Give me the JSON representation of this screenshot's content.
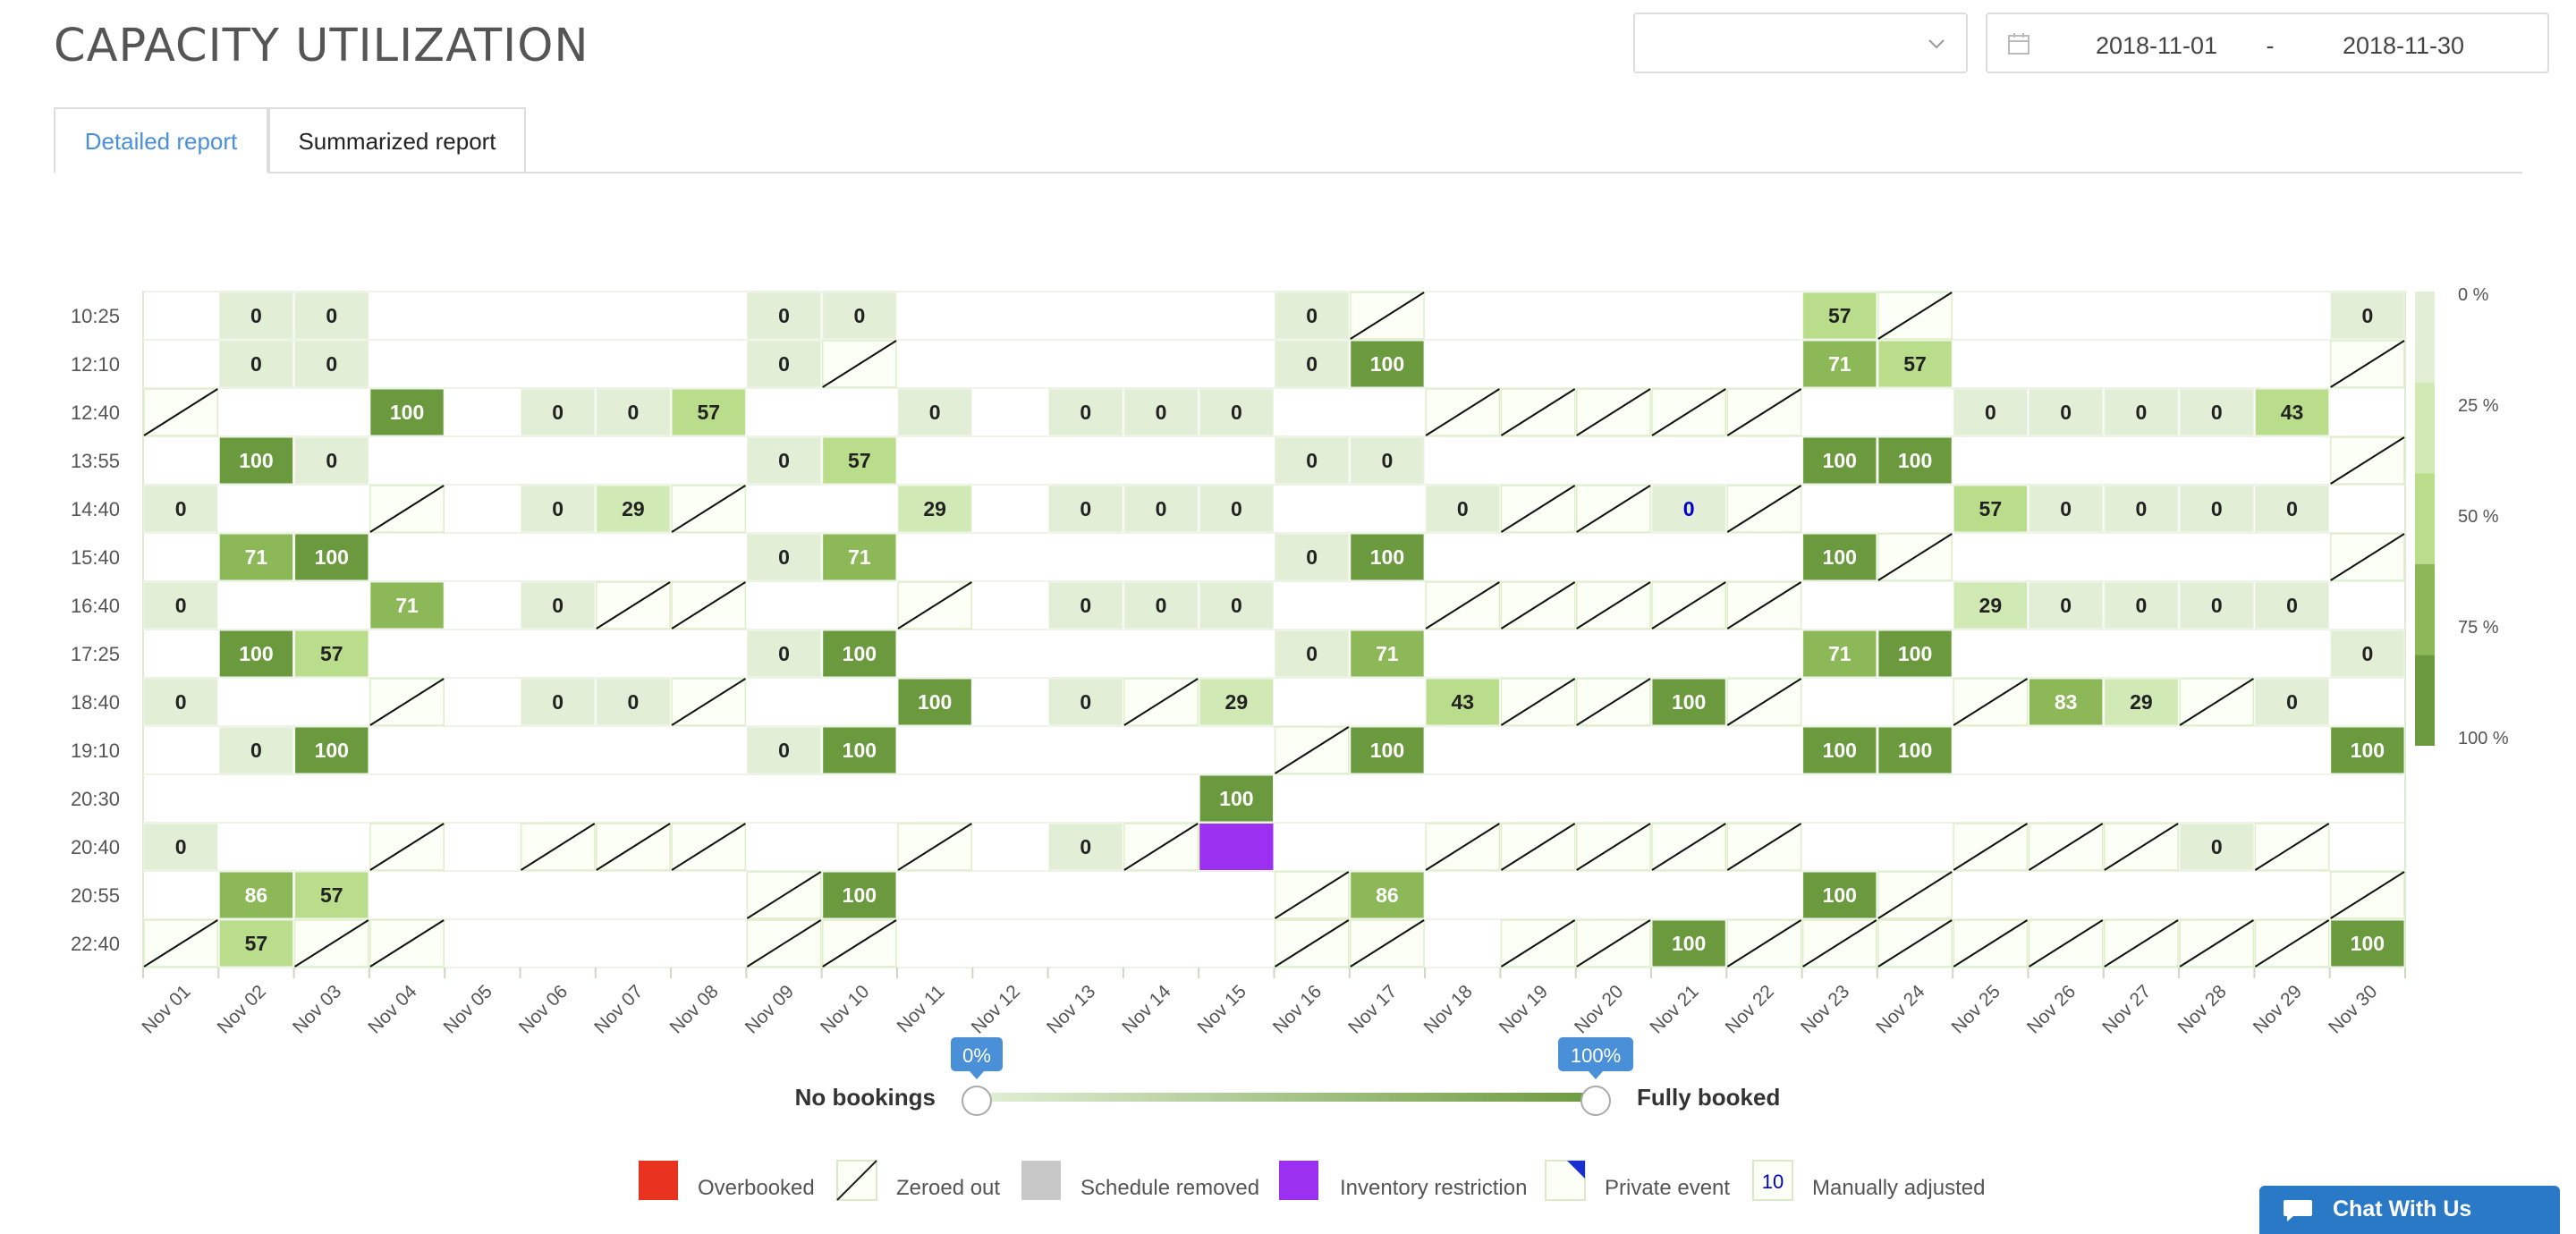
{
  "header": {
    "title": "CAPACITY UTILIZATION"
  },
  "filters": {
    "event_select": {
      "value": ""
    },
    "date_range": {
      "start": "2018-11-01",
      "separator": "-",
      "end": "2018-11-30"
    }
  },
  "tabs": [
    {
      "label": "Detailed report",
      "active": true
    },
    {
      "label": "Summarized report",
      "active": false
    }
  ],
  "chart_data": {
    "type": "heatmap",
    "x_categories": [
      "Nov 01",
      "Nov 02",
      "Nov 03",
      "Nov 04",
      "Nov 05",
      "Nov 06",
      "Nov 07",
      "Nov 08",
      "Nov 09",
      "Nov 10",
      "Nov 11",
      "Nov 12",
      "Nov 13",
      "Nov 14",
      "Nov 15",
      "Nov 16",
      "Nov 17",
      "Nov 18",
      "Nov 19",
      "Nov 20",
      "Nov 21",
      "Nov 22",
      "Nov 23",
      "Nov 24",
      "Nov 25",
      "Nov 26",
      "Nov 27",
      "Nov 28",
      "Nov 29",
      "Nov 30"
    ],
    "y_categories": [
      "10:25",
      "12:10",
      "12:40",
      "13:55",
      "14:40",
      "15:40",
      "16:40",
      "17:25",
      "18:40",
      "19:10",
      "20:30",
      "20:40",
      "20:55",
      "22:40"
    ],
    "cell_codes": "number = percent booked, z = zeroed out, i = inventory restriction, m = manually adjusted, empty = no schedule",
    "rows": [
      [
        "",
        "0",
        "0",
        "",
        "",
        "",
        "",
        "",
        "0",
        "0",
        "",
        "",
        "",
        "",
        "",
        "0",
        "z",
        "",
        "",
        "",
        "",
        "",
        "57",
        "z",
        "",
        "",
        "",
        "",
        "",
        "0"
      ],
      [
        "",
        "0",
        "0",
        "",
        "",
        "",
        "",
        "",
        "0",
        "z",
        "",
        "",
        "",
        "",
        "",
        "0",
        "100",
        "",
        "",
        "",
        "",
        "",
        "71",
        "57",
        "",
        "",
        "",
        "",
        "",
        "z"
      ],
      [
        "z",
        "",
        "",
        "100",
        "",
        "0",
        "0",
        "57",
        "",
        "",
        "0",
        "",
        "0",
        "0",
        "0",
        "",
        "",
        "z",
        "z",
        "z",
        "z",
        "z",
        "",
        "",
        "0",
        "0",
        "0",
        "0",
        "43",
        ""
      ],
      [
        "",
        "100",
        "0",
        "",
        "",
        "",
        "",
        "",
        "0",
        "57",
        "",
        "",
        "",
        "",
        "",
        "0",
        "0",
        "",
        "",
        "",
        "",
        "",
        "100",
        "100",
        "",
        "",
        "",
        "",
        "",
        "z"
      ],
      [
        "0",
        "",
        "",
        "z",
        "",
        "0",
        "29",
        "z",
        "",
        "",
        "29",
        "",
        "0",
        "0",
        "0",
        "",
        "",
        "0",
        "z",
        "z",
        "m0",
        "z",
        "",
        "",
        "57",
        "0",
        "0",
        "0",
        "0",
        ""
      ],
      [
        "",
        "71",
        "100",
        "",
        "",
        "",
        "",
        "",
        "0",
        "71",
        "",
        "",
        "",
        "",
        "",
        "0",
        "100",
        "",
        "",
        "",
        "",
        "",
        "100",
        "z",
        "",
        "",
        "",
        "",
        "",
        "z"
      ],
      [
        "0",
        "",
        "",
        "71",
        "",
        "0",
        "z",
        "z",
        "",
        "",
        "z",
        "",
        "0",
        "0",
        "0",
        "",
        "",
        "z",
        "z",
        "z",
        "z",
        "z",
        "",
        "",
        "29",
        "0",
        "0",
        "0",
        "0",
        ""
      ],
      [
        "",
        "100",
        "57",
        "",
        "",
        "",
        "",
        "",
        "0",
        "100",
        "",
        "",
        "",
        "",
        "",
        "0",
        "71",
        "",
        "",
        "",
        "",
        "",
        "71",
        "100",
        "",
        "",
        "",
        "",
        "",
        "0"
      ],
      [
        "0",
        "",
        "",
        "z",
        "",
        "0",
        "0",
        "z",
        "",
        "",
        "100",
        "",
        "0",
        "z",
        "29",
        "",
        "",
        "43",
        "z",
        "z",
        "100",
        "z",
        "",
        "",
        "z",
        "83",
        "29",
        "z",
        "0",
        ""
      ],
      [
        "",
        "0",
        "100",
        "",
        "",
        "",
        "",
        "",
        "0",
        "100",
        "",
        "",
        "",
        "",
        "",
        "z",
        "100",
        "",
        "",
        "",
        "",
        "",
        "100",
        "100",
        "",
        "",
        "",
        "",
        "",
        "100"
      ],
      [
        "",
        "",
        "",
        "",
        "",
        "",
        "",
        "",
        "",
        "",
        "",
        "",
        "",
        "",
        "100",
        "",
        "",
        "",
        "",
        "",
        "",
        "",
        "",
        "",
        "",
        "",
        "",
        "",
        "",
        ""
      ],
      [
        "0",
        "",
        "",
        "z",
        "",
        "z",
        "z",
        "z",
        "",
        "",
        "z",
        "",
        "0",
        "z",
        "i",
        "",
        "",
        "z",
        "z",
        "z",
        "z",
        "z",
        "",
        "",
        "z",
        "z",
        "z",
        "0",
        "z",
        ""
      ],
      [
        "",
        "86",
        "57",
        "",
        "",
        "",
        "",
        "",
        "z",
        "100",
        "",
        "",
        "",
        "",
        "",
        "z",
        "86",
        "",
        "",
        "",
        "",
        "",
        "100",
        "z",
        "",
        "",
        "",
        "",
        "",
        "z"
      ],
      [
        "z",
        "57",
        "z",
        "z",
        "",
        "",
        "",
        "",
        "z",
        "z",
        "",
        "",
        "",
        "",
        "",
        "z",
        "z",
        "",
        "z",
        "z",
        "100",
        "z",
        "z",
        "z",
        "z",
        "z",
        "z",
        "z",
        "z",
        "100"
      ]
    ],
    "color_scale": {
      "ticks": [
        "0 %",
        "25 %",
        "50 %",
        "75 %",
        "100 %"
      ],
      "colors": [
        "#e2efd6",
        "#d0e9b5",
        "#b9dd8a",
        "#8db858",
        "#6b9a3e"
      ]
    },
    "zeroed_fill": "#fbfff5",
    "inventory_color": "#9b30f0",
    "manual_text_color": "#0000cc"
  },
  "slider": {
    "left_label": "No bookings",
    "right_label": "Fully booked",
    "min_bubble": "0%",
    "max_bubble": "100%",
    "min_value": 0,
    "max_value": 100
  },
  "legend": [
    {
      "label": "Overbooked",
      "icon": "red-square",
      "color": "#e8321f"
    },
    {
      "label": "Zeroed out",
      "icon": "diagonal-square"
    },
    {
      "label": "Schedule removed",
      "icon": "gray-square",
      "color": "#c8c8c8"
    },
    {
      "label": "Inventory restriction",
      "icon": "purple-square",
      "color": "#9b30f0"
    },
    {
      "label": "Private event",
      "icon": "corner-triangle-square",
      "color": "#1a2fd0"
    },
    {
      "label": "Manually adjusted",
      "icon": "number-square",
      "sample": "10"
    }
  ],
  "chat": {
    "label": "Chat With Us",
    "icon": "chat-bubble-icon"
  }
}
